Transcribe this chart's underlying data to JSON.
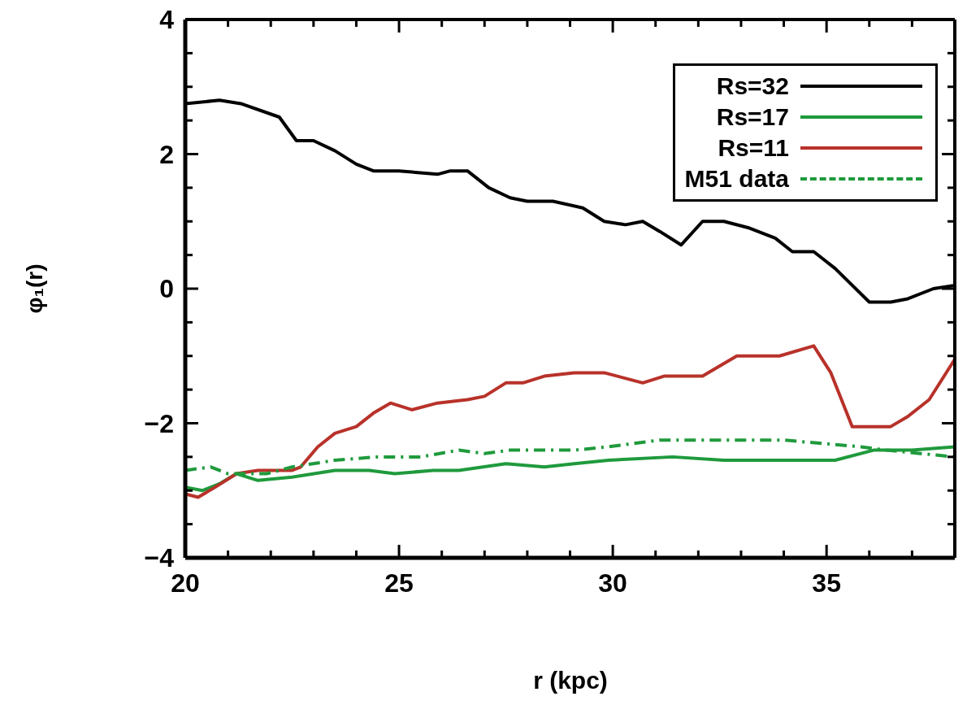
{
  "chart_data": {
    "type": "line",
    "xlabel": "r (kpc)",
    "ylabel": "φ₁(r)",
    "xlim": [
      20,
      38
    ],
    "ylim": [
      -4,
      4
    ],
    "xticks": [
      20,
      {
        "value": 21,
        "label": null
      },
      {
        "value": 22,
        "label": null
      },
      {
        "value": 23,
        "label": null
      },
      {
        "value": 24,
        "label": null
      },
      25,
      {
        "value": 26,
        "label": null
      },
      {
        "value": 27,
        "label": null
      },
      {
        "value": 28,
        "label": null
      },
      {
        "value": 29,
        "label": null
      },
      30,
      {
        "value": 31,
        "label": null
      },
      {
        "value": 32,
        "label": null
      },
      {
        "value": 33,
        "label": null
      },
      {
        "value": 34,
        "label": null
      },
      35,
      {
        "value": 36,
        "label": null
      },
      {
        "value": 37,
        "label": null
      },
      {
        "value": 38,
        "label": null
      }
    ],
    "yticks": [
      -4,
      {
        "value": -3.5,
        "label": null
      },
      {
        "value": -3,
        "label": null
      },
      {
        "value": -2.5,
        "label": null
      },
      -2,
      {
        "value": -1.5,
        "label": null
      },
      {
        "value": -1,
        "label": null
      },
      {
        "value": -0.5,
        "label": null
      },
      0,
      {
        "value": 0.5,
        "label": null
      },
      {
        "value": 1,
        "label": null
      },
      {
        "value": 1.5,
        "label": null
      },
      2,
      {
        "value": 2.5,
        "label": null
      },
      {
        "value": 3,
        "label": null
      },
      {
        "value": 3.5,
        "label": null
      },
      4
    ],
    "legend": "top right",
    "marker": "none",
    "series": [
      {
        "name": "Rs=32",
        "color": "#000000",
        "line_style": "solid",
        "x": [
          20,
          20.8,
          21.3,
          22.2,
          22.6,
          23,
          23.5,
          24,
          24.4,
          25,
          25.9,
          26.2,
          26.6,
          27.1,
          27.6,
          28,
          28.6,
          29.3,
          29.8,
          30.3,
          30.7,
          31.1,
          31.6,
          32.1,
          32.6,
          33.2,
          33.8,
          34.2,
          34.7,
          35.2,
          36,
          36.5,
          36.9,
          37.5,
          38
        ],
        "values": [
          2.75,
          2.8,
          2.75,
          2.55,
          2.2,
          2.2,
          2.05,
          1.85,
          1.75,
          1.75,
          1.7,
          1.75,
          1.75,
          1.5,
          1.35,
          1.3,
          1.3,
          1.2,
          1,
          0.95,
          1,
          0.85,
          0.65,
          1,
          1,
          0.9,
          0.75,
          0.55,
          0.55,
          0.3,
          -0.2,
          -0.2,
          -0.15,
          0,
          0.05
        ]
      },
      {
        "name": "Rs=17",
        "color": "#1f9a3c",
        "line_style": "solid",
        "x": [
          20,
          20.4,
          20.8,
          21.2,
          21.7,
          22.5,
          23.5,
          24.3,
          24.9,
          25.8,
          26.4,
          27.5,
          28.4,
          29.1,
          29.9,
          31.4,
          32.6,
          33.8,
          35.2,
          36.1,
          37,
          38
        ],
        "values": [
          -2.95,
          -3,
          -2.9,
          -2.75,
          -2.85,
          -2.8,
          -2.7,
          -2.7,
          -2.75,
          -2.7,
          -2.7,
          -2.6,
          -2.65,
          -2.6,
          -2.55,
          -2.5,
          -2.55,
          -2.55,
          -2.55,
          -2.4,
          -2.4,
          -2.35
        ]
      },
      {
        "name": "Rs=11",
        "color": "#b8322a",
        "line_style": "solid",
        "x": [
          20,
          20.3,
          20.7,
          21.2,
          21.7,
          22.5,
          22.7,
          23.1,
          23.5,
          24,
          24.4,
          24.8,
          25.3,
          25.9,
          26.6,
          27,
          27.5,
          27.9,
          28.4,
          29.1,
          29.8,
          30.7,
          31.2,
          32.1,
          32.9,
          33.9,
          34.7,
          35.1,
          35.6,
          36.5,
          36.9,
          37.4,
          38
        ],
        "values": [
          -3.05,
          -3.1,
          -2.95,
          -2.75,
          -2.7,
          -2.7,
          -2.65,
          -2.35,
          -2.15,
          -2.05,
          -1.85,
          -1.7,
          -1.8,
          -1.7,
          -1.65,
          -1.6,
          -1.4,
          -1.4,
          -1.3,
          -1.25,
          -1.25,
          -1.4,
          -1.3,
          -1.3,
          -1,
          -1,
          -0.85,
          -1.25,
          -2.05,
          -2.05,
          -1.9,
          -1.65,
          -1.05
        ]
      },
      {
        "name": "M51 data",
        "color": "#1f9a3c",
        "line_style": "dashed",
        "x": [
          20,
          20.6,
          21,
          21.9,
          22.5,
          23.5,
          24.5,
          25.5,
          26.4,
          27,
          27.6,
          29.1,
          29.9,
          31.1,
          32.3,
          34,
          35.8,
          36.4,
          38
        ],
        "values": [
          -2.7,
          -2.65,
          -2.75,
          -2.75,
          -2.65,
          -2.55,
          -2.5,
          -2.5,
          -2.4,
          -2.45,
          -2.4,
          -2.4,
          -2.35,
          -2.25,
          -2.25,
          -2.25,
          -2.35,
          -2.4,
          -2.5
        ]
      }
    ]
  }
}
